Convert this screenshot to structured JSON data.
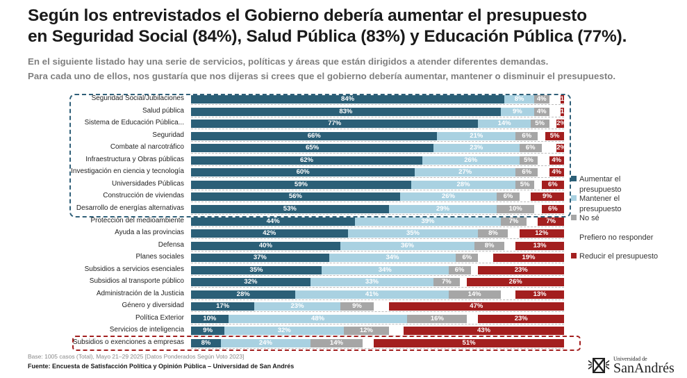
{
  "title_line1": "Según los entrevistados el Gobierno debería aumentar el presupuesto",
  "title_line2": "en Seguridad Social (84%), Salud Pública (83%) y Educación Pública (77%).",
  "subtitle_line1": "En el siguiente listado hay una serie de servicios, políticas y áreas que están dirigidos a atender diferentes demandas.",
  "subtitle_line2": "Para cada uno de ellos, nos gustaría que nos dijeras si crees que el gobierno debería aumentar, mantener o disminuir el presupuesto.",
  "footer": {
    "base": "Base: 1005 casos (Total), Mayo 21–29 2025 [Datos Ponderados Según Voto 2023]",
    "source": "Fuente: Encuesta de Satisfacción Política y Opinión Pública – Universidad de San Andrés",
    "logo_small": "Universidad de",
    "logo_big": "SanAndrés"
  },
  "chart_data": {
    "type": "bar",
    "stacked": true,
    "orientation": "horizontal",
    "xlim": [
      0,
      100
    ],
    "categories": [
      "Seguridad Social/Jubilaciones",
      "Salud pública",
      "Sistema de Educación Pública...",
      "Seguridad",
      "Combate al narcotráfico",
      "Infraestructura y Obras públicas",
      "Investigación en ciencia y tecnología",
      "Universidades Públicas",
      "Construcción de viviendas",
      "Desarrollo de energías alternativas",
      "Protección del medioambiente",
      "Ayuda a las provincias",
      "Defensa",
      "Planes sociales",
      "Subsidios a servicios esenciales",
      "Subsidios al transporte público",
      "Administración de la  Justicia",
      "Género y diversidad",
      "Política Exterior",
      "Servicios de inteligencia",
      "Subsidios o exenciones a empresas"
    ],
    "series": [
      {
        "name": "Aumentar el presupuesto",
        "color": "#2b5f77",
        "values": [
          84,
          83,
          77,
          66,
          65,
          62,
          60,
          59,
          56,
          53,
          44,
          42,
          40,
          37,
          35,
          32,
          28,
          17,
          10,
          9,
          8
        ]
      },
      {
        "name": "Mantener el presupuesto",
        "color": "#a9d1e1",
        "values": [
          8,
          9,
          14,
          21,
          23,
          26,
          27,
          28,
          26,
          29,
          39,
          35,
          36,
          34,
          34,
          33,
          41,
          23,
          48,
          32,
          24
        ]
      },
      {
        "name": "No sé",
        "color": "#a6a6a6",
        "values": [
          4,
          4,
          5,
          6,
          6,
          5,
          6,
          5,
          6,
          10,
          7,
          8,
          8,
          6,
          6,
          7,
          14,
          9,
          16,
          12,
          14
        ]
      },
      {
        "name": "Prefiero no responder",
        "color": "#ffffff",
        "values": [
          3,
          3,
          2,
          2,
          4,
          3,
          3,
          2,
          3,
          2,
          3,
          3,
          3,
          4,
          2,
          2,
          4,
          4,
          3,
          4,
          3
        ]
      },
      {
        "name": "Reducir el presupuesto",
        "color": "#a31f1f",
        "values": [
          1,
          1,
          2,
          5,
          2,
          4,
          4,
          6,
          9,
          6,
          7,
          12,
          13,
          19,
          23,
          26,
          13,
          47,
          23,
          43,
          51
        ]
      }
    ],
    "legend_position": "right",
    "highlight_blue_rows": 10,
    "highlight_red_rows": [
      20
    ]
  }
}
